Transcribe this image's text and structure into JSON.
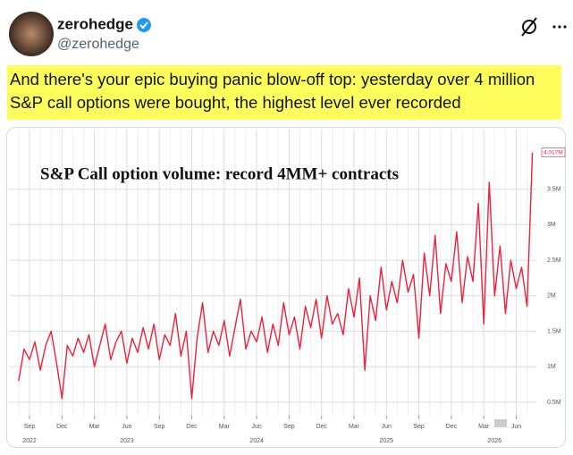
{
  "tweet": {
    "name": "zerohedge",
    "handle": "@zerohedge",
    "text_lines": [
      "And there's your epic buying panic blow-off top: yesterday over 4 million",
      "S&P call options were bought, the highest level ever recorded"
    ]
  },
  "chart_data": {
    "type": "line",
    "title": "S&P Call  option volume: record 4MM+ contracts",
    "categories": [
      null,
      null,
      "Sep",
      null,
      null,
      null,
      null,
      null,
      "Dec",
      null,
      null,
      null,
      null,
      null,
      "Mar",
      null,
      null,
      null,
      null,
      null,
      "Jun",
      null,
      null,
      null,
      null,
      null,
      "Sep",
      null,
      null,
      null,
      null,
      null,
      "Dec",
      null,
      null,
      null,
      null,
      null,
      "Mar",
      null,
      null,
      null,
      null,
      null,
      "Jun",
      null,
      null,
      null,
      null,
      null,
      "Sep",
      null,
      null,
      null,
      null,
      null,
      "Dec",
      null,
      null,
      null,
      null,
      null,
      "Mar",
      null,
      null,
      null,
      null,
      null,
      "Jun",
      null,
      null,
      null,
      null,
      null,
      "Sep",
      null,
      null,
      null,
      null,
      null,
      "Dec",
      null,
      null,
      null,
      null,
      null,
      "Mar",
      null,
      null,
      null,
      null,
      null,
      "Jun",
      null,
      null,
      null
    ],
    "years": [
      null,
      null,
      "2022",
      null,
      null,
      null,
      null,
      null,
      null,
      null,
      null,
      null,
      null,
      null,
      null,
      null,
      null,
      null,
      null,
      null,
      "2023",
      null,
      null,
      null,
      null,
      null,
      null,
      null,
      null,
      null,
      null,
      null,
      null,
      null,
      null,
      null,
      null,
      null,
      null,
      null,
      null,
      null,
      null,
      null,
      "2024",
      null,
      null,
      null,
      null,
      null,
      null,
      null,
      null,
      null,
      null,
      null,
      null,
      null,
      null,
      null,
      null,
      null,
      null,
      null,
      null,
      null,
      null,
      null,
      "2025",
      null,
      null,
      null,
      null,
      null,
      null,
      null,
      null,
      null,
      null,
      null,
      null,
      null,
      null,
      null,
      null,
      null,
      null,
      null,
      "2026",
      null,
      null,
      null,
      null,
      null,
      null,
      null
    ],
    "series": [
      {
        "name": "S&P call option volume",
        "color": "#f0203a",
        "values": [
          0.8,
          1.25,
          1.1,
          1.35,
          0.95,
          1.3,
          1.5,
          1.05,
          0.55,
          1.3,
          1.15,
          1.4,
          1.2,
          1.45,
          1.0,
          1.3,
          1.6,
          1.1,
          1.35,
          1.5,
          1.05,
          1.4,
          1.2,
          1.55,
          1.25,
          1.6,
          1.1,
          1.45,
          1.3,
          1.75,
          1.15,
          1.5,
          0.55,
          1.4,
          1.9,
          1.2,
          1.5,
          1.3,
          1.65,
          1.15,
          1.55,
          1.95,
          1.25,
          1.5,
          1.35,
          1.7,
          1.2,
          1.6,
          1.3,
          1.9,
          1.45,
          1.7,
          1.25,
          1.85,
          1.55,
          1.95,
          1.4,
          2.0,
          1.6,
          1.75,
          1.45,
          2.1,
          1.7,
          2.25,
          0.95,
          2.0,
          1.65,
          2.4,
          1.8,
          2.2,
          1.9,
          2.5,
          2.05,
          2.3,
          1.4,
          2.6,
          2.0,
          2.85,
          1.75,
          2.45,
          2.2,
          2.9,
          1.9,
          2.55,
          2.2,
          3.3,
          1.6,
          3.6,
          2.0,
          2.7,
          1.75,
          2.5,
          2.1,
          2.4,
          1.85,
          4.017
        ],
        "value_labels": [
          null,
          null,
          null,
          null,
          null,
          null,
          null,
          null,
          null,
          null,
          null,
          null,
          null,
          null,
          null,
          null,
          null,
          null,
          null,
          null,
          null,
          null,
          null,
          null,
          null,
          null,
          null,
          null,
          null,
          null,
          null,
          null,
          null,
          null,
          null,
          null,
          null,
          null,
          null,
          null,
          null,
          null,
          null,
          null,
          null,
          null,
          null,
          null,
          null,
          null,
          null,
          null,
          null,
          null,
          null,
          null,
          null,
          null,
          null,
          null,
          null,
          null,
          null,
          null,
          null,
          null,
          null,
          null,
          null,
          null,
          null,
          null,
          null,
          null,
          null,
          null,
          null,
          null,
          null,
          null,
          null,
          null,
          null,
          null,
          null,
          null,
          null,
          null,
          null,
          null,
          null,
          null,
          null,
          null,
          null,
          "4.017M"
        ]
      }
    ],
    "ylim": [
      0.31,
      4.34
    ],
    "yticks": [
      {
        "value": 0.5,
        "label": "0.5M"
      },
      {
        "value": 1,
        "label": "1M"
      },
      {
        "value": 1.5,
        "label": "1.5M"
      },
      {
        "value": 2,
        "label": "2M"
      },
      {
        "value": 2.5,
        "label": "2.5M"
      },
      {
        "value": 3,
        "label": "3M"
      },
      {
        "value": 3.5,
        "label": "3.5M"
      }
    ],
    "grid": true
  }
}
